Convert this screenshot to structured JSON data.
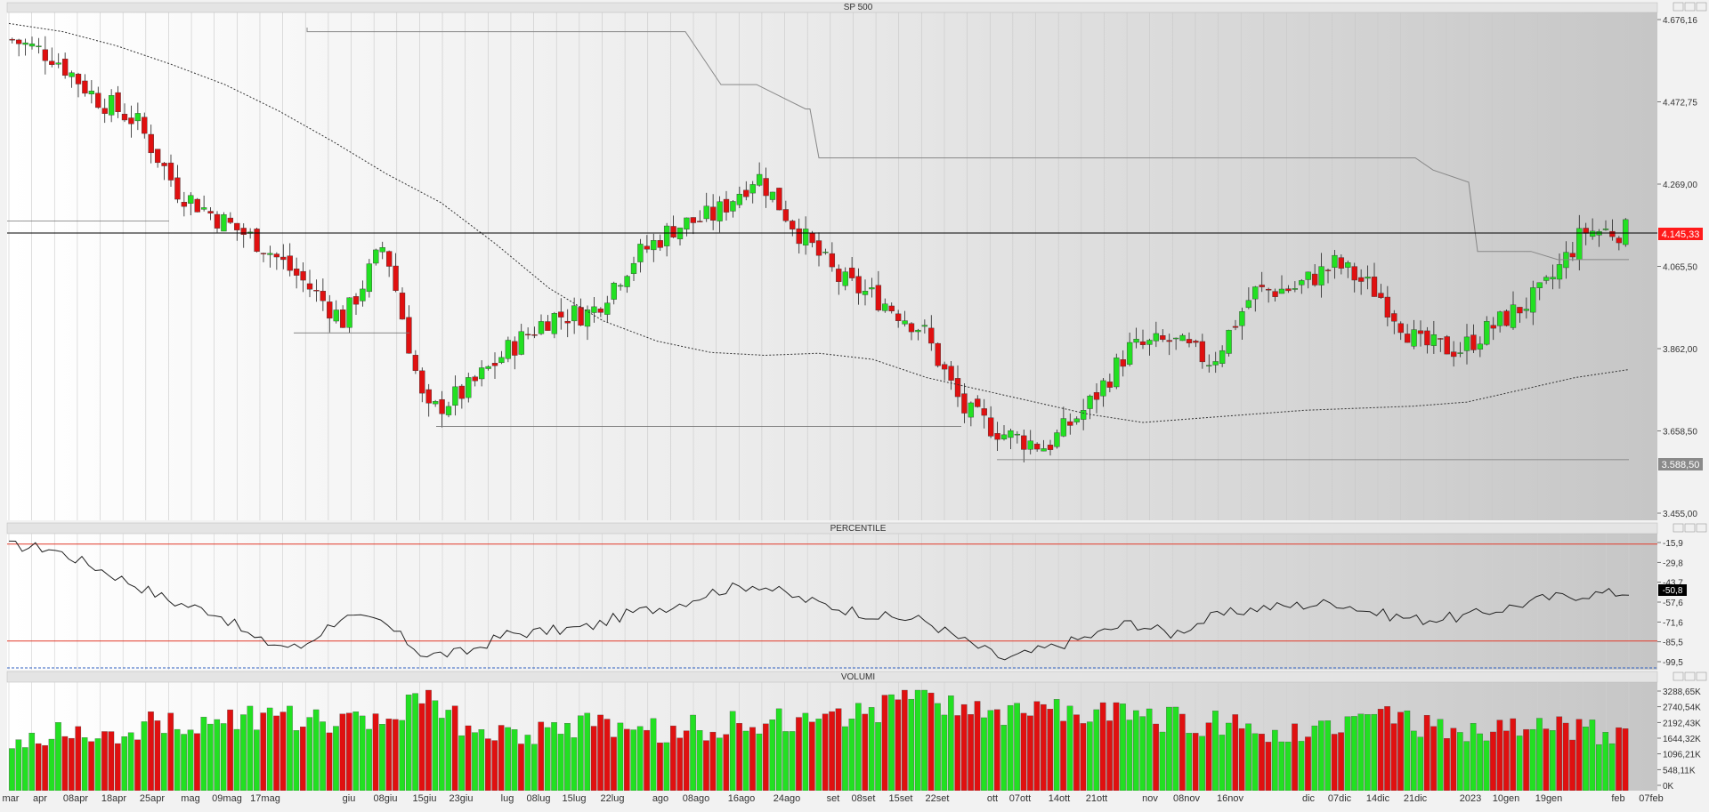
{
  "colors": {
    "up_candle": "#22e022",
    "down_candle": "#e01010",
    "price_tag": "#ff1a1a",
    "percentile_tag": "#000000",
    "support_tag": "#8a8a8a",
    "band_line": "#e23a2a"
  },
  "window_icons": [
    "minimize-icon",
    "maximize-icon",
    "close-icon"
  ],
  "panels": {
    "price": {
      "title": "SP 500",
      "ticks": [
        "4.676,16",
        "4.472,75",
        "4.269,00",
        "4.065,50",
        "3.862,00",
        "3.658,50",
        "3.455,00"
      ],
      "last_price_label": "4.145,33",
      "support_label": "3.588,50"
    },
    "percentile": {
      "title": "PERCENTILE",
      "ticks": [
        "-15,9",
        "-29,8",
        "-43,7",
        "-57,6",
        "-71,6",
        "-85,5",
        "-99,5"
      ],
      "current_label": "-50,8"
    },
    "volume": {
      "title": "VOLUMI",
      "ticks": [
        "3288,65K",
        "2740,54K",
        "2192,43K",
        "1644,32K",
        "1096,21K",
        "548,11K",
        "0K"
      ]
    }
  },
  "date_labels": [
    "mar",
    "apr",
    "08apr",
    "18apr",
    "25apr",
    "mag",
    "09mag",
    "17mag",
    "giu",
    "08giu",
    "15giu",
    "23giu",
    "lug",
    "08lug",
    "15lug",
    "22lug",
    "ago",
    "08ago",
    "16ago",
    "24ago",
    "set",
    "08set",
    "15set",
    "22set",
    "ott",
    "07ott",
    "14ott",
    "21ott",
    "nov",
    "08nov",
    "16nov",
    "dic",
    "07dic",
    "14dic",
    "21dic",
    "2023",
    "10gen",
    "19gen",
    "feb",
    "07feb"
  ],
  "chart_data": [
    {
      "type": "candlestick",
      "title": "SP 500",
      "ylim": [
        3455.0,
        4676.16
      ],
      "x": [
        "mar",
        "apr",
        "08apr",
        "18apr",
        "25apr",
        "mag",
        "09mag",
        "17mag",
        "giu",
        "08giu",
        "15giu",
        "23giu",
        "lug",
        "08lug",
        "15lug",
        "22lug",
        "ago",
        "08ago",
        "16ago",
        "24ago",
        "set",
        "08set",
        "15set",
        "22set",
        "ott",
        "07ott",
        "14ott",
        "21ott",
        "nov",
        "08nov",
        "16nov",
        "dic",
        "07dic",
        "14dic",
        "21dic",
        "2023",
        "10gen",
        "19gen",
        "feb",
        "07feb"
      ],
      "close_series": [
        4620,
        4580,
        4480,
        4420,
        4250,
        4180,
        4120,
        4030,
        3930,
        4120,
        3700,
        3760,
        3860,
        3940,
        3950,
        4080,
        4160,
        4190,
        4290,
        4150,
        4030,
        3980,
        3910,
        3710,
        3650,
        3620,
        3720,
        3860,
        3880,
        3830,
        4000,
        4010,
        4070,
        4000,
        3870,
        3860,
        3930,
        4000,
        4150,
        4150
      ],
      "moving_average": [
        4660,
        4640,
        4605,
        4560,
        4510,
        4445,
        4370,
        4290,
        4220,
        4120,
        4010,
        3930,
        3880,
        3852,
        3845,
        3850,
        3835,
        3790,
        3760,
        3730,
        3700,
        3680,
        3690,
        3700,
        3710,
        3715,
        3720,
        3730,
        3760,
        3790,
        3810
      ],
      "annotations": {
        "last_price": 4145.33,
        "support_level": 3588.5
      },
      "grid": true
    },
    {
      "type": "line",
      "title": "PERCENTILE",
      "ylim": [
        -99.5,
        -15.9
      ],
      "values": [
        -18,
        -20,
        -32,
        -45,
        -58,
        -65,
        -85,
        -90,
        -68,
        -72,
        -95,
        -93,
        -80,
        -78,
        -75,
        -65,
        -60,
        -50,
        -45,
        -55,
        -62,
        -68,
        -70,
        -85,
        -98,
        -90,
        -82,
        -72,
        -80,
        -68,
        -62,
        -60,
        -58,
        -66,
        -70,
        -68,
        -62,
        -55,
        -52,
        -51
      ],
      "bands": [
        -17,
        -85
      ],
      "current": -50.8,
      "grid": true
    },
    {
      "type": "bar",
      "title": "VOLUMI",
      "ylim": [
        0,
        3288.65
      ],
      "unit": "K",
      "values": [
        1500,
        1900,
        1700,
        2100,
        2300,
        2200,
        2400,
        2300,
        2100,
        2300,
        3200,
        2000,
        1900,
        2000,
        2100,
        1900,
        2000,
        2100,
        2300,
        2200,
        2400,
        2700,
        3200,
        2600,
        2500,
        2700,
        2600,
        2400,
        2300,
        2200,
        2000,
        1900,
        2300,
        2400,
        2100,
        1800,
        1900,
        2100,
        2000,
        1800
      ],
      "grid": true
    }
  ]
}
